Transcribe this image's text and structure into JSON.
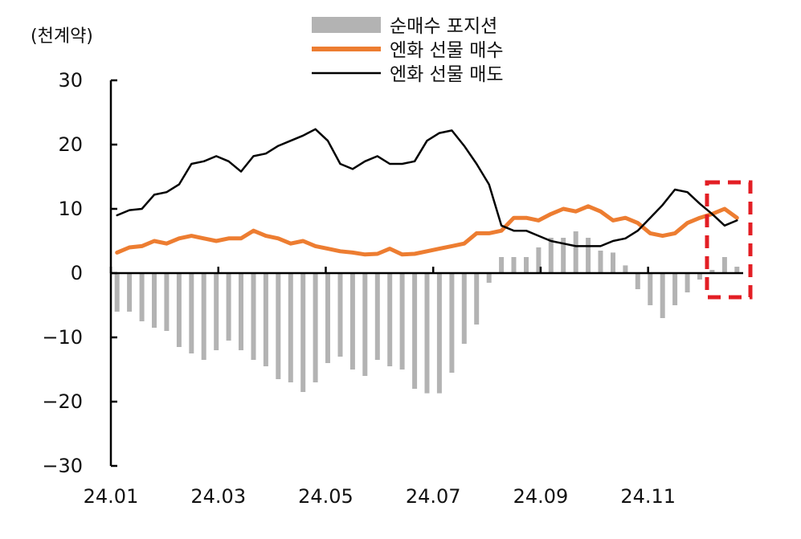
{
  "chart_data": {
    "type": "bar+line",
    "unit_label": "(천계약)",
    "ylim": [
      -30,
      30
    ],
    "yticks": [
      -30,
      -20,
      -10,
      0,
      10,
      20,
      30
    ],
    "ytick_labels": [
      "−30",
      "−20",
      "−10",
      "0",
      "10",
      "20",
      "30"
    ],
    "xtick_labels": [
      "24.01",
      "24.03",
      "24.05",
      "24.07",
      "24.09",
      "24.11"
    ],
    "legend": [
      {
        "name": "순매수 포지션",
        "kind": "bar",
        "color": "#b3b3b3"
      },
      {
        "name": "엔화 선물 매수",
        "kind": "line",
        "color": "#ed7d31"
      },
      {
        "name": "엔화 선물 매도",
        "kind": "line",
        "color": "#000000"
      }
    ],
    "series": [
      {
        "name": "순매수 포지션",
        "values": [
          -6,
          -6,
          -7.5,
          -8.5,
          -9,
          -11.5,
          -12.5,
          -13.5,
          -12,
          -10.5,
          -12,
          -13.5,
          -14.5,
          -16.5,
          -17,
          -18.5,
          -17,
          -14,
          -13,
          -15,
          -16,
          -13.5,
          -14.5,
          -15,
          -18,
          -18.7,
          -18.7,
          -15.5,
          -11,
          -8,
          -1.5,
          2.5,
          2.5,
          2.5,
          4,
          5.5,
          5.5,
          6.5,
          5.5,
          3.5,
          3.2,
          1.2,
          -2.5,
          -5,
          -7,
          -5,
          -3,
          -1,
          0.5,
          2.5,
          1
        ]
      },
      {
        "name": "엔화 선물 매수",
        "values": [
          3.2,
          4,
          4.2,
          5,
          4.6,
          5.4,
          5.8,
          5.4,
          5,
          5.4,
          5.4,
          6.6,
          5.8,
          5.4,
          4.6,
          5,
          4.2,
          3.8,
          3.4,
          3.2,
          2.9,
          3,
          3.8,
          2.9,
          3,
          3.4,
          3.8,
          4.2,
          4.6,
          6.2,
          6.2,
          6.6,
          8.6,
          8.6,
          8.2,
          9.2,
          10,
          9.6,
          10.4,
          9.6,
          8.2,
          8.6,
          7.8,
          6.2,
          5.8,
          6.2,
          7.8,
          8.6,
          9.2,
          10,
          8.6
        ]
      },
      {
        "name": "엔화 선물 매도",
        "values": [
          9,
          9.8,
          10,
          12.2,
          12.6,
          13.8,
          17,
          17.4,
          18.2,
          17.4,
          15.8,
          18.2,
          18.6,
          19.8,
          20.6,
          21.4,
          22.4,
          20.6,
          17,
          16.2,
          17.4,
          18.2,
          17,
          17,
          17.4,
          20.6,
          21.8,
          22.2,
          19.8,
          17,
          13.8,
          7.4,
          6.6,
          6.6,
          5.8,
          5,
          4.6,
          4.2,
          4.2,
          4.2,
          5,
          5.4,
          6.6,
          8.6,
          10.6,
          13,
          12.6,
          10.8,
          9.2,
          7.4,
          8.2
        ]
      }
    ],
    "highlight_box": true,
    "grid": false
  }
}
